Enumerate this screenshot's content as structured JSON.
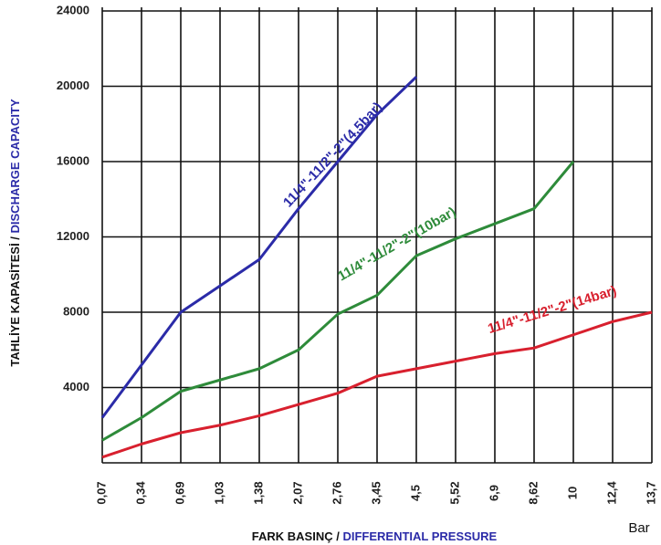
{
  "chart_data": {
    "type": "line",
    "y_title_parts": [
      "TAHLİYE KAPASİTESİ /",
      "DISCHARGE CAPACITY"
    ],
    "x_title_parts": [
      "FARK BASINÇ /",
      "DIFFERENTIAL PRESSURE"
    ],
    "x_unit": "Bar",
    "categories": [
      "0,07",
      "0,34",
      "0,69",
      "1,03",
      "1,38",
      "2,07",
      "2,76",
      "3,45",
      "4,5",
      "5,52",
      "6,9",
      "8,62",
      "10",
      "12,4",
      "13,7"
    ],
    "ylim": [
      0,
      24000
    ],
    "yticks": [
      4000,
      8000,
      12000,
      16000,
      20000,
      24000
    ],
    "grid": true,
    "series": [
      {
        "name": "11/4\"-11/2\"-2\"(4,5bar)",
        "color": "#2b2ba8",
        "values": [
          2400,
          5200,
          8000,
          9400,
          10800,
          13500,
          16000,
          18500,
          20500,
          null,
          null,
          null,
          null,
          null,
          null
        ]
      },
      {
        "name": "11/4\"-11/2\"-2\"(10bar)",
        "color": "#2e8b3a",
        "values": [
          1200,
          2400,
          3800,
          4400,
          5000,
          6000,
          7900,
          8900,
          11000,
          11900,
          12700,
          13500,
          16000,
          null,
          null
        ]
      },
      {
        "name": "11/4\"-11/2\"-2\"(14bar)",
        "color": "#d8202e",
        "values": [
          300,
          1000,
          1600,
          2000,
          2500,
          3100,
          3700,
          4600,
          5000,
          5400,
          5800,
          6100,
          6800,
          7500,
          8000
        ]
      }
    ]
  }
}
